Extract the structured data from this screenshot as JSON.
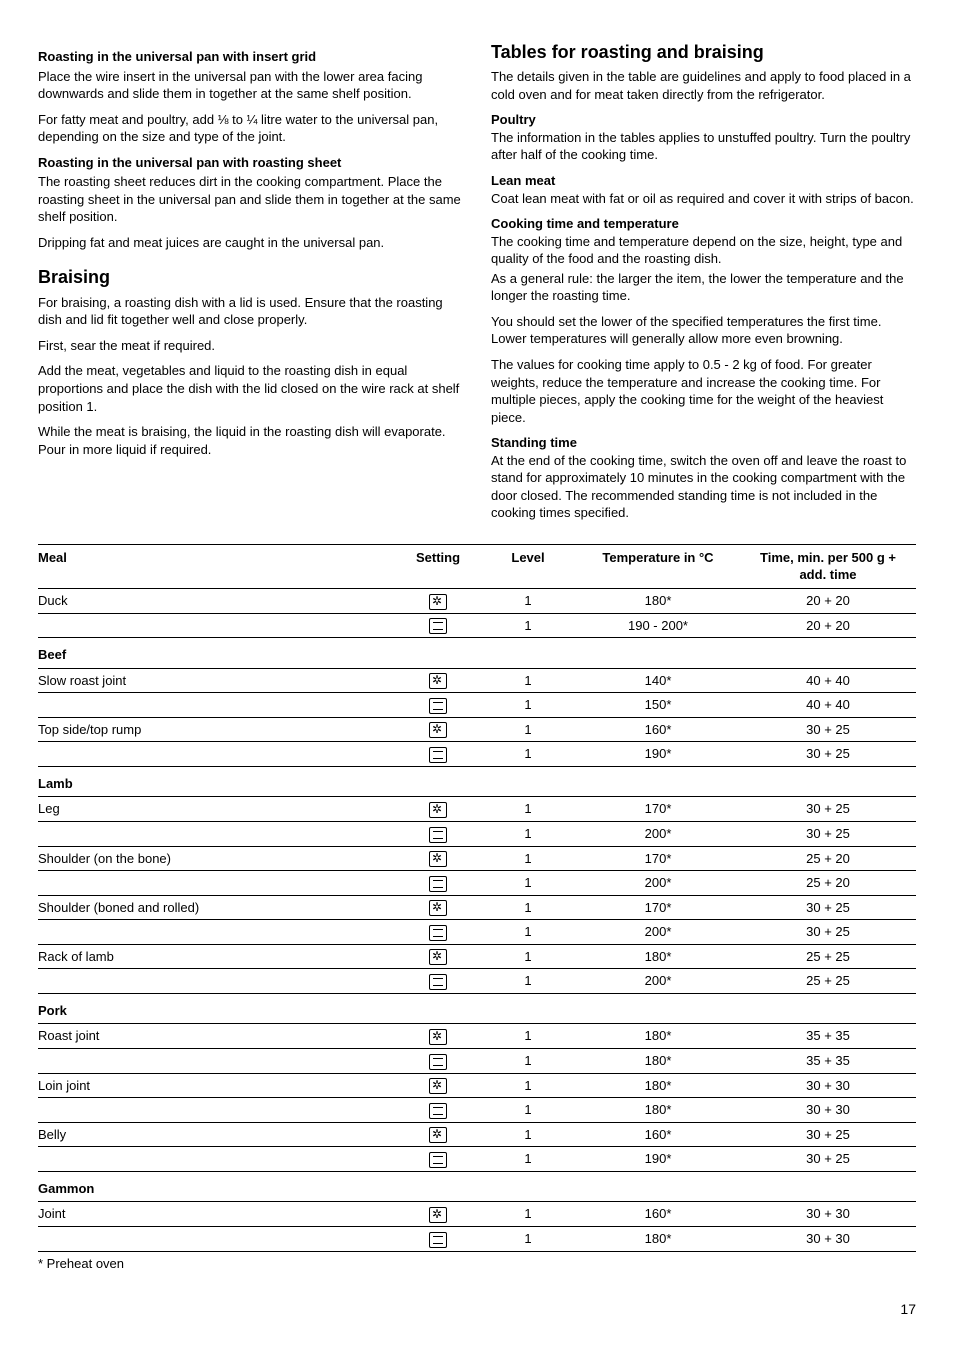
{
  "left": {
    "h1": "Roasting in the universal pan with insert grid",
    "p1": "Place the wire insert in the universal pan with the lower area facing downwards and slide them in together at the same shelf position.",
    "p2": "For fatty meat and poultry, add ⅛ to ¼ litre water to the universal pan, depending on the size and type of the joint.",
    "h2": "Roasting in the universal pan with roasting sheet",
    "p3": "The roasting sheet reduces dirt in the cooking compartment. Place the roasting sheet in the universal pan and slide them in together at the same shelf position.",
    "p4": "Dripping fat and meat juices are caught in the universal pan.",
    "h3": "Braising",
    "p5": "For braising, a roasting dish with a lid is used. Ensure that the roasting dish and lid fit together well and close properly.",
    "p6": "First, sear the meat if required.",
    "p7": "Add the meat, vegetables and liquid to the roasting dish in equal proportions and place the dish with the lid closed on the wire rack at shelf position 1.",
    "p8": "While the meat is braising, the liquid in the roasting dish will evaporate. Pour in more liquid if required."
  },
  "right": {
    "h1": "Tables for roasting and braising",
    "p1": "The details given in the table are guidelines and apply to food placed in a cold oven and for meat taken directly from the refrigerator.",
    "h2": "Poultry",
    "p2": "The information in the tables applies to unstuffed poultry. Turn the poultry after half of the cooking time.",
    "h3": "Lean meat",
    "p3": "Coat lean meat with fat or oil as required and cover it with strips of bacon.",
    "h4": "Cooking time and temperature",
    "p4": "The cooking time and temperature depend on the size, height, type and quality of the food and the roasting dish.",
    "p5": "As a general rule: the larger the item, the lower the temperature and the longer the roasting time.",
    "p6": "You should set the lower of the specified temperatures the first time. Lower temperatures will generally allow more even browning.",
    "p7": "The values for cooking time apply to 0.5 - 2 kg of food. For greater weights, reduce the temperature and increase the cooking time. For multiple pieces, apply the cooking time for the weight of the heaviest piece.",
    "h5": "Standing time",
    "p8": "At the end of the cooking time, switch the oven off and leave the roast to stand for approximately 10 minutes in the cooking compartment with the door closed. The recommended standing time is not included in the cooking times specified."
  },
  "table": {
    "headers": {
      "meal": "Meal",
      "setting": "Setting",
      "level": "Level",
      "temp": "Temperature in °C",
      "time": "Time, min. per 500 g + add. time"
    },
    "rows": [
      {
        "meal": "Duck",
        "set": "fan",
        "lvl": "1",
        "tmp": "180*",
        "time": "20 + 20",
        "first": true
      },
      {
        "meal": "",
        "set": "conv",
        "lvl": "1",
        "tmp": "190 - 200*",
        "time": "20 + 20"
      },
      {
        "cat": "Beef"
      },
      {
        "meal": "Slow roast joint",
        "set": "fan",
        "lvl": "1",
        "tmp": "140*",
        "time": "40 + 40"
      },
      {
        "meal": "",
        "set": "conv",
        "lvl": "1",
        "tmp": "150*",
        "time": "40 + 40"
      },
      {
        "meal": "Top side/top rump",
        "set": "fan",
        "lvl": "1",
        "tmp": "160*",
        "time": "30 + 25"
      },
      {
        "meal": "",
        "set": "conv",
        "lvl": "1",
        "tmp": "190*",
        "time": "30 + 25"
      },
      {
        "cat": "Lamb"
      },
      {
        "meal": "Leg",
        "set": "fan",
        "lvl": "1",
        "tmp": "170*",
        "time": "30 + 25"
      },
      {
        "meal": "",
        "set": "conv",
        "lvl": "1",
        "tmp": "200*",
        "time": "30 + 25"
      },
      {
        "meal": "Shoulder (on the bone)",
        "set": "fan",
        "lvl": "1",
        "tmp": "170*",
        "time": "25 + 20"
      },
      {
        "meal": "",
        "set": "conv",
        "lvl": "1",
        "tmp": "200*",
        "time": "25 + 20"
      },
      {
        "meal": "Shoulder (boned and rolled)",
        "set": "fan",
        "lvl": "1",
        "tmp": "170*",
        "time": "30 + 25"
      },
      {
        "meal": "",
        "set": "conv",
        "lvl": "1",
        "tmp": "200*",
        "time": "30 + 25"
      },
      {
        "meal": "Rack of lamb",
        "set": "fan",
        "lvl": "1",
        "tmp": "180*",
        "time": "25 + 25"
      },
      {
        "meal": "",
        "set": "conv",
        "lvl": "1",
        "tmp": "200*",
        "time": "25 + 25"
      },
      {
        "cat": "Pork"
      },
      {
        "meal": "Roast joint",
        "set": "fan",
        "lvl": "1",
        "tmp": "180*",
        "time": "35 + 35"
      },
      {
        "meal": "",
        "set": "conv",
        "lvl": "1",
        "tmp": "180*",
        "time": "35 + 35"
      },
      {
        "meal": "Loin joint",
        "set": "fan",
        "lvl": "1",
        "tmp": "180*",
        "time": "30 + 30"
      },
      {
        "meal": "",
        "set": "conv",
        "lvl": "1",
        "tmp": "180*",
        "time": "30 + 30"
      },
      {
        "meal": "Belly",
        "set": "fan",
        "lvl": "1",
        "tmp": "160*",
        "time": "30 + 25"
      },
      {
        "meal": "",
        "set": "conv",
        "lvl": "1",
        "tmp": "190*",
        "time": "30 + 25"
      },
      {
        "cat": "Gammon"
      },
      {
        "meal": "Joint",
        "set": "fan",
        "lvl": "1",
        "tmp": "160*",
        "time": "30 + 30"
      },
      {
        "meal": "",
        "set": "conv",
        "lvl": "1",
        "tmp": "180*",
        "time": "30 + 30"
      }
    ],
    "footnote": "* Preheat oven"
  },
  "pagenum": "17"
}
